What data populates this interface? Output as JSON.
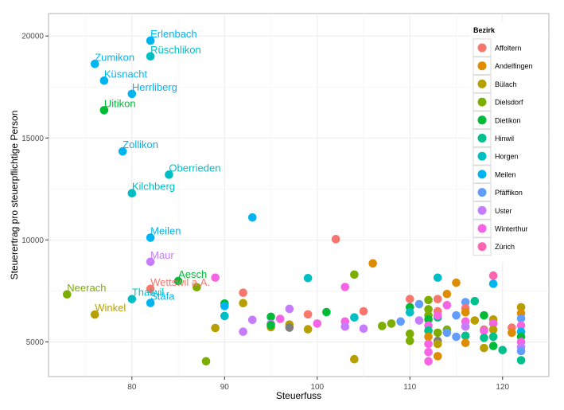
{
  "chart_data": {
    "type": "scatter",
    "title": "",
    "xlabel": "Steuerfuss",
    "ylabel": "Steuerertrag pro steuerpflichtige Person",
    "xlim": [
      71,
      125
    ],
    "ylim": [
      3300,
      21100
    ],
    "x_ticks": [
      80,
      90,
      100,
      110,
      120
    ],
    "y_ticks": [
      5000,
      10000,
      15000,
      20000
    ],
    "grid": true,
    "legend": {
      "title": "Bezirk",
      "placement": "right-inside-top",
      "entries": [
        {
          "name": "Affoltern",
          "color": "#F8766D"
        },
        {
          "name": "Andelfingen",
          "color": "#DE8C00"
        },
        {
          "name": "Bülach",
          "color": "#B79F00"
        },
        {
          "name": "Dielsdorf",
          "color": "#7CAE00"
        },
        {
          "name": "Dietikon",
          "color": "#00BA38"
        },
        {
          "name": "Hinwil",
          "color": "#00C08B"
        },
        {
          "name": "Horgen",
          "color": "#00BFC4"
        },
        {
          "name": "Meilen",
          "color": "#00B4F0"
        },
        {
          "name": "Pfäffikon",
          "color": "#619CFF"
        },
        {
          "name": "Uster",
          "color": "#C77CFF"
        },
        {
          "name": "Winterthur",
          "color": "#F564E3"
        },
        {
          "name": "Zürich",
          "color": "#FF64B0"
        }
      ]
    },
    "na_color": "#7F7F7F",
    "labeled_points": [
      {
        "name": "Erlenbach",
        "bezirk": "Meilen",
        "x": 82,
        "y": 19770
      },
      {
        "name": "Rüschlikon",
        "bezirk": "Horgen",
        "x": 82,
        "y": 19000
      },
      {
        "name": "Zumikon",
        "bezirk": "Meilen",
        "x": 76,
        "y": 18630
      },
      {
        "name": "Küsnacht",
        "bezirk": "Meilen",
        "x": 77,
        "y": 17810
      },
      {
        "name": "Herrliberg",
        "bezirk": "Meilen",
        "x": 80,
        "y": 17160
      },
      {
        "name": "Uitikon",
        "bezirk": "Dietikon",
        "x": 77,
        "y": 16360
      },
      {
        "name": "Zollikon",
        "bezirk": "Meilen",
        "x": 79,
        "y": 14340
      },
      {
        "name": "Oberrieden",
        "bezirk": "Horgen",
        "x": 84,
        "y": 13200
      },
      {
        "name": "Kilchberg",
        "bezirk": "Horgen",
        "x": 80,
        "y": 12290
      },
      {
        "name": "Meilen",
        "bezirk": "Meilen",
        "x": 82,
        "y": 10110
      },
      {
        "name": "Maur",
        "bezirk": "Uster",
        "x": 82,
        "y": 8930
      },
      {
        "name": "Aesch",
        "bezirk": "Dietikon",
        "x": 85,
        "y": 7980
      },
      {
        "name": "Wettswil a.A.",
        "bezirk": "Affoltern",
        "x": 82,
        "y": 7600
      },
      {
        "name": "Neerach",
        "bezirk": "Dielsdorf",
        "x": 73,
        "y": 7330
      },
      {
        "name": "Thalwil",
        "bezirk": "Horgen",
        "x": 80,
        "y": 7100
      },
      {
        "name": "Stäfa",
        "bezirk": "Meilen",
        "x": 82,
        "y": 6910
      },
      {
        "name": "Winkel",
        "bezirk": "Bülach",
        "x": 76,
        "y": 6340
      }
    ],
    "points": [
      {
        "bezirk": "Dielsdorf",
        "x": 87,
        "y": 7680
      },
      {
        "bezirk": "Winterthur",
        "x": 89,
        "y": 8150
      },
      {
        "bezirk": "Dietikon",
        "x": 90,
        "y": 6880
      },
      {
        "bezirk": "Meilen",
        "x": 90,
        "y": 6760
      },
      {
        "bezirk": "Horgen",
        "x": 90,
        "y": 6270
      },
      {
        "bezirk": "Bülach",
        "x": 89,
        "y": 5680
      },
      {
        "bezirk": "Dielsdorf",
        "x": 88,
        "y": 4050
      },
      {
        "bezirk": "Affoltern",
        "x": 92,
        "y": 7410
      },
      {
        "bezirk": "Bülach",
        "x": 92,
        "y": 6900
      },
      {
        "bezirk": "Uster",
        "x": 92,
        "y": 5500
      },
      {
        "bezirk": "Uster",
        "x": 93,
        "y": 6080
      },
      {
        "bezirk": "Meilen",
        "x": 93,
        "y": 11100
      },
      {
        "bezirk": "Dietikon",
        "x": 95,
        "y": 6230
      },
      {
        "bezirk": "Uster",
        "x": 95,
        "y": 5880
      },
      {
        "bezirk": "Bülach",
        "x": 95,
        "y": 5720
      },
      {
        "bezirk": "Dietikon",
        "x": 95,
        "y": 5820
      },
      {
        "bezirk": "Winterthur",
        "x": 96,
        "y": 6130
      },
      {
        "bezirk": "Uster",
        "x": 97,
        "y": 6620
      },
      {
        "bezirk": "Bülach",
        "x": 97,
        "y": 5850
      },
      {
        "bezirk": "NA",
        "x": 97,
        "y": 5700
      },
      {
        "bezirk": "Affoltern",
        "x": 99,
        "y": 6350
      },
      {
        "bezirk": "Bülach",
        "x": 99,
        "y": 5620
      },
      {
        "bezirk": "Horgen",
        "x": 99,
        "y": 8130
      },
      {
        "bezirk": "Winterthur",
        "x": 100,
        "y": 5900
      },
      {
        "bezirk": "Dietikon",
        "x": 101,
        "y": 6460
      },
      {
        "bezirk": "Affoltern",
        "x": 102,
        "y": 10040
      },
      {
        "bezirk": "Winterthur",
        "x": 103,
        "y": 7690
      },
      {
        "bezirk": "Winterthur",
        "x": 103,
        "y": 6000
      },
      {
        "bezirk": "Uster",
        "x": 103,
        "y": 5750
      },
      {
        "bezirk": "Horgen",
        "x": 104,
        "y": 6200
      },
      {
        "bezirk": "Dielsdorf",
        "x": 104,
        "y": 8300
      },
      {
        "bezirk": "Bülach",
        "x": 104,
        "y": 4150
      },
      {
        "bezirk": "Affoltern",
        "x": 105,
        "y": 6500
      },
      {
        "bezirk": "Uster",
        "x": 105,
        "y": 5650
      },
      {
        "bezirk": "Andelfingen",
        "x": 106,
        "y": 8850
      },
      {
        "bezirk": "Dielsdorf",
        "x": 107,
        "y": 5780
      },
      {
        "bezirk": "Dielsdorf",
        "x": 108,
        "y": 5900
      },
      {
        "bezirk": "Pfäffikon",
        "x": 109,
        "y": 6000
      },
      {
        "bezirk": "Affoltern",
        "x": 110,
        "y": 7100
      },
      {
        "bezirk": "Dietikon",
        "x": 110,
        "y": 6700
      },
      {
        "bezirk": "Horgen",
        "x": 110,
        "y": 6450
      },
      {
        "bezirk": "Dielsdorf",
        "x": 110,
        "y": 5400
      },
      {
        "bezirk": "Dielsdorf",
        "x": 110,
        "y": 5050
      },
      {
        "bezirk": "Pfäffikon",
        "x": 111,
        "y": 6850
      },
      {
        "bezirk": "Uster",
        "x": 111,
        "y": 6050
      },
      {
        "bezirk": "Dielsdorf",
        "x": 112,
        "y": 7050
      },
      {
        "bezirk": "Dielsdorf",
        "x": 112,
        "y": 6600
      },
      {
        "bezirk": "Dielsdorf",
        "x": 112,
        "y": 6300
      },
      {
        "bezirk": "Dietikon",
        "x": 112,
        "y": 6100
      },
      {
        "bezirk": "Winterthur",
        "x": 112,
        "y": 5800
      },
      {
        "bezirk": "Hinwil",
        "x": 112,
        "y": 5550
      },
      {
        "bezirk": "Andelfingen",
        "x": 112,
        "y": 5250
      },
      {
        "bezirk": "Winterthur",
        "x": 112,
        "y": 4900
      },
      {
        "bezirk": "Winterthur",
        "x": 112,
        "y": 4500
      },
      {
        "bezirk": "Winterthur",
        "x": 112,
        "y": 4050
      },
      {
        "bezirk": "Affoltern",
        "x": 113,
        "y": 7100
      },
      {
        "bezirk": "Horgen",
        "x": 113,
        "y": 8150
      },
      {
        "bezirk": "Affoltern",
        "x": 113,
        "y": 6500
      },
      {
        "bezirk": "Hinwil",
        "x": 113,
        "y": 6200
      },
      {
        "bezirk": "Winterthur",
        "x": 113,
        "y": 6300
      },
      {
        "bezirk": "Dielsdorf",
        "x": 113,
        "y": 5450
      },
      {
        "bezirk": "NA",
        "x": 113,
        "y": 5050
      },
      {
        "bezirk": "Bülach",
        "x": 113,
        "y": 4900
      },
      {
        "bezirk": "Andelfingen",
        "x": 113,
        "y": 4300
      },
      {
        "bezirk": "Andelfingen",
        "x": 114,
        "y": 7350
      },
      {
        "bezirk": "Winterthur",
        "x": 114,
        "y": 6800
      },
      {
        "bezirk": "Dielsdorf",
        "x": 114,
        "y": 5600
      },
      {
        "bezirk": "Pfäffikon",
        "x": 114,
        "y": 5450
      },
      {
        "bezirk": "Andelfingen",
        "x": 115,
        "y": 7900
      },
      {
        "bezirk": "Pfäffikon",
        "x": 115,
        "y": 6300
      },
      {
        "bezirk": "Pfäffikon",
        "x": 115,
        "y": 5250
      },
      {
        "bezirk": "Pfäffikon",
        "x": 116,
        "y": 6950
      },
      {
        "bezirk": "Affoltern",
        "x": 116,
        "y": 6650
      },
      {
        "bezirk": "Andelfingen",
        "x": 116,
        "y": 6450
      },
      {
        "bezirk": "Winterthur",
        "x": 116,
        "y": 6000
      },
      {
        "bezirk": "Uster",
        "x": 116,
        "y": 5750
      },
      {
        "bezirk": "Hinwil",
        "x": 116,
        "y": 5300
      },
      {
        "bezirk": "Andelfingen",
        "x": 116,
        "y": 4950
      },
      {
        "bezirk": "Hinwil",
        "x": 117,
        "y": 7000
      },
      {
        "bezirk": "Bülach",
        "x": 117,
        "y": 6050
      },
      {
        "bezirk": "Dietikon",
        "x": 118,
        "y": 6300
      },
      {
        "bezirk": "Bülach",
        "x": 118,
        "y": 5600
      },
      {
        "bezirk": "Winterthur",
        "x": 118,
        "y": 5550
      },
      {
        "bezirk": "Hinwil",
        "x": 118,
        "y": 5200
      },
      {
        "bezirk": "Bülach",
        "x": 118,
        "y": 4700
      },
      {
        "bezirk": "Zürich",
        "x": 119,
        "y": 8250
      },
      {
        "bezirk": "Meilen",
        "x": 119,
        "y": 7850
      },
      {
        "bezirk": "Bülach",
        "x": 119,
        "y": 6100
      },
      {
        "bezirk": "Winterthur",
        "x": 119,
        "y": 5900
      },
      {
        "bezirk": "Bülach",
        "x": 119,
        "y": 5600
      },
      {
        "bezirk": "Hinwil",
        "x": 119,
        "y": 5250
      },
      {
        "bezirk": "Dietikon",
        "x": 119,
        "y": 4800
      },
      {
        "bezirk": "Hinwil",
        "x": 120,
        "y": 4600
      },
      {
        "bezirk": "Affoltern",
        "x": 121,
        "y": 5700
      },
      {
        "bezirk": "Andelfingen",
        "x": 121,
        "y": 5450
      },
      {
        "bezirk": "Bülach",
        "x": 122,
        "y": 6700
      },
      {
        "bezirk": "Andelfingen",
        "x": 122,
        "y": 6400
      },
      {
        "bezirk": "Pfäffikon",
        "x": 122,
        "y": 6150
      },
      {
        "bezirk": "Winterthur",
        "x": 122,
        "y": 5800
      },
      {
        "bezirk": "Meilen",
        "x": 122,
        "y": 5500
      },
      {
        "bezirk": "Dietikon",
        "x": 122,
        "y": 5250
      },
      {
        "bezirk": "Winterthur",
        "x": 122,
        "y": 5000
      },
      {
        "bezirk": "Uster",
        "x": 122,
        "y": 4750
      },
      {
        "bezirk": "Pfäffikon",
        "x": 122,
        "y": 4550
      },
      {
        "bezirk": "Hinwil",
        "x": 122,
        "y": 4100
      }
    ]
  }
}
